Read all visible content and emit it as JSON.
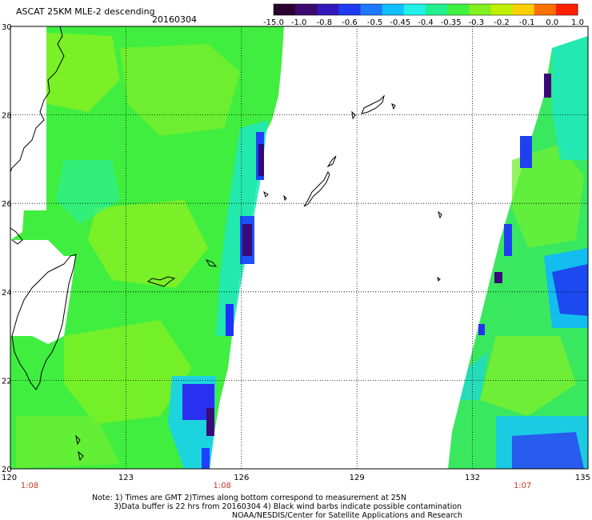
{
  "title": "ASCAT 25KM MLE-2 descending",
  "date": "20160304",
  "colorbar": {
    "labels": [
      "-15.0",
      "-1.0",
      "-0.8",
      "-0.6",
      "-0.5",
      "-0.45",
      "-0.4",
      "-0.35",
      "-0.3",
      "-0.2",
      "-0.1",
      "0.0",
      "1.0"
    ],
    "colors": [
      "#2a0030",
      "#3c0a6e",
      "#3218b8",
      "#1e3cf0",
      "#1e78ff",
      "#10c0ff",
      "#20f0e8",
      "#20f090",
      "#40f040",
      "#80f020",
      "#c0f000",
      "#ffd000",
      "#ff7000",
      "#ff2000"
    ]
  },
  "axes": {
    "x_ticks": [
      "120",
      "123",
      "126",
      "129",
      "132",
      "135"
    ],
    "y_ticks": [
      "30",
      "28",
      "26",
      "24",
      "22",
      "20"
    ],
    "xlim": [
      120,
      135
    ],
    "ylim": [
      20,
      30
    ]
  },
  "time_labels": [
    {
      "text": "1:08",
      "lon": 120.5
    },
    {
      "text": "1:08",
      "lon": 125.5
    },
    {
      "text": "1:07",
      "lon": 133.3
    }
  ],
  "notes": [
    "Note: 1) Times are GMT 2)Times along bottom correspond to measurement at 25N",
    "3)Data buffer is 22 hrs from 20160304 4) Black wind barbs indicate possible contamination",
    "NOAA/NESDIS/Center for Satellite Applications and Research"
  ]
}
